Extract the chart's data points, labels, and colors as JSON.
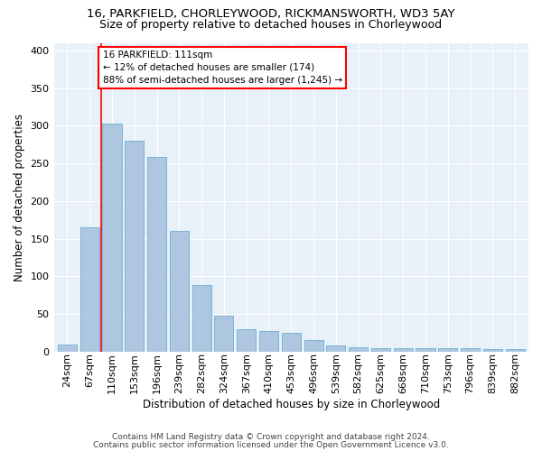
{
  "title1": "16, PARKFIELD, CHORLEYWOOD, RICKMANSWORTH, WD3 5AY",
  "title2": "Size of property relative to detached houses in Chorleywood",
  "xlabel": "Distribution of detached houses by size in Chorleywood",
  "ylabel": "Number of detached properties",
  "categories": [
    "24sqm",
    "67sqm",
    "110sqm",
    "153sqm",
    "196sqm",
    "239sqm",
    "282sqm",
    "324sqm",
    "367sqm",
    "410sqm",
    "453sqm",
    "496sqm",
    "539sqm",
    "582sqm",
    "625sqm",
    "668sqm",
    "710sqm",
    "753sqm",
    "796sqm",
    "839sqm",
    "882sqm"
  ],
  "values": [
    10,
    165,
    303,
    280,
    258,
    160,
    88,
    48,
    30,
    28,
    25,
    15,
    8,
    6,
    5,
    5,
    5,
    5,
    5,
    4,
    3
  ],
  "bar_color": "#aec6df",
  "bar_edgecolor": "#6baed6",
  "annotation_text": "16 PARKFIELD: 111sqm\n← 12% of detached houses are smaller (174)\n88% of semi-detached houses are larger (1,245) →",
  "annotation_box_facecolor": "white",
  "annotation_box_edgecolor": "red",
  "vline_color": "red",
  "vline_x_index": 2,
  "ylim": [
    0,
    410
  ],
  "yticks": [
    0,
    50,
    100,
    150,
    200,
    250,
    300,
    350,
    400
  ],
  "bg_color": "#e8f0f8",
  "footnote1": "Contains HM Land Registry data © Crown copyright and database right 2024.",
  "footnote2": "Contains public sector information licensed under the Open Government Licence v3.0.",
  "title1_fontsize": 9.5,
  "title2_fontsize": 9.0,
  "xlabel_fontsize": 8.5,
  "ylabel_fontsize": 8.5,
  "tick_fontsize": 8.0,
  "ann_fontsize": 7.5,
  "footnote_fontsize": 6.5
}
